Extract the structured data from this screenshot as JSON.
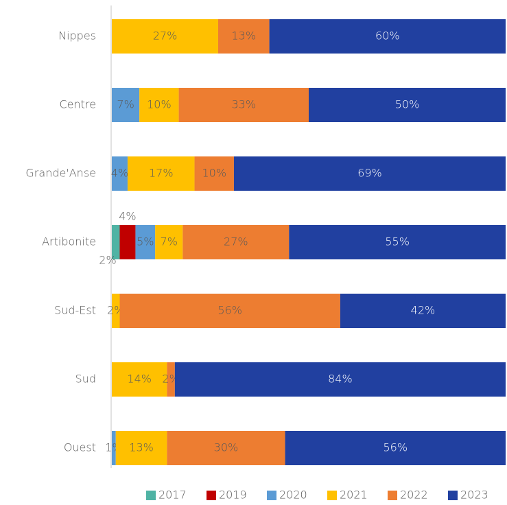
{
  "chart_data": {
    "type": "bar",
    "orientation": "horizontal",
    "stacked": true,
    "categories": [
      "Nippes",
      "Centre",
      "Grande'Anse",
      "Artibonite",
      "Sud-Est",
      "Sud",
      "Ouest"
    ],
    "xlim": [
      0,
      100
    ],
    "legend": "bottom",
    "series": [
      {
        "name": "2017",
        "color": "#4fb3a4",
        "values": [
          null,
          null,
          null,
          2,
          null,
          null,
          null
        ],
        "value_labels": [
          null,
          null,
          null,
          "2%",
          null,
          null,
          null
        ]
      },
      {
        "name": "2019",
        "color": "#c00000",
        "values": [
          null,
          null,
          null,
          4,
          null,
          null,
          null
        ],
        "value_labels": [
          null,
          null,
          null,
          "4%",
          null,
          null,
          null
        ]
      },
      {
        "name": "2020",
        "color": "#5b9bd5",
        "values": [
          null,
          7,
          4,
          5,
          null,
          null,
          1
        ],
        "value_labels": [
          null,
          "7%",
          "4%",
          "5%",
          null,
          null,
          "1%"
        ]
      },
      {
        "name": "2021",
        "color": "#ffc000",
        "values": [
          27,
          10,
          17,
          7,
          2,
          14,
          13
        ],
        "value_labels": [
          "27%",
          "10%",
          "17%",
          "7%",
          "2%",
          "14%",
          "13%"
        ]
      },
      {
        "name": "2022",
        "color": "#ed7d31",
        "values": [
          13,
          33,
          10,
          27,
          56,
          2,
          30
        ],
        "value_labels": [
          "13%",
          "33%",
          "10%",
          "27%",
          "56%",
          "2%",
          "30%"
        ]
      },
      {
        "name": "2023",
        "color": "#2140a0",
        "values": [
          60,
          50,
          69,
          55,
          42,
          84,
          56
        ],
        "value_labels": [
          "60%",
          "50%",
          "69%",
          "55%",
          "42%",
          "84%",
          "56%"
        ]
      }
    ]
  }
}
